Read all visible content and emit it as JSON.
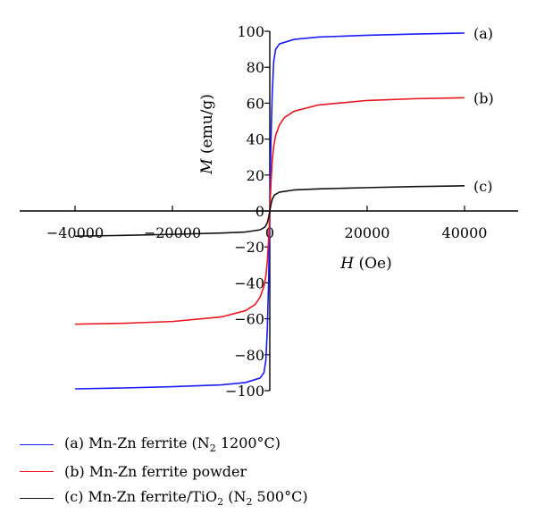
{
  "chart_data": {
    "type": "line",
    "xlabel": {
      "italic": "H",
      "rest": " (Oe)"
    },
    "ylabel": {
      "italic": "M",
      "rest": " (emu/g)"
    },
    "xlim": [
      -50000,
      50000
    ],
    "ylim": [
      -100,
      100
    ],
    "xticks": [
      -40000,
      -20000,
      0,
      20000,
      40000
    ],
    "yticks": [
      -100,
      -80,
      -60,
      -40,
      -20,
      0,
      20,
      40,
      60,
      80,
      100
    ],
    "grid": false,
    "legend_position": "bottom-left",
    "series": [
      {
        "id": "a",
        "curve_label": "(a)",
        "legend": {
          "pre": "(a) Mn-Zn ferrite (N",
          "sub": "2",
          "post": " 1200°C)"
        },
        "color": "#1a1aff",
        "x": [
          -40000,
          -30000,
          -20000,
          -10000,
          -5000,
          -2000,
          -1200,
          -800,
          -500,
          -250,
          -100,
          0,
          100,
          250,
          500,
          800,
          1200,
          2000,
          5000,
          10000,
          20000,
          30000,
          40000
        ],
        "y": [
          -99,
          -98.5,
          -97.8,
          -96.8,
          -95.5,
          -93,
          -90,
          -83,
          -65,
          -40,
          -18,
          0,
          18,
          40,
          65,
          83,
          90,
          93,
          95.5,
          96.8,
          97.8,
          98.5,
          99
        ]
      },
      {
        "id": "b",
        "curve_label": "(b)",
        "legend": {
          "pre": "(b) Mn-Zn ferrite powder",
          "sub": "",
          "post": ""
        },
        "color": "#e8141e",
        "x": [
          -40000,
          -30000,
          -20000,
          -10000,
          -5000,
          -3000,
          -2000,
          -1200,
          -800,
          -500,
          -250,
          -100,
          0,
          100,
          250,
          500,
          800,
          1200,
          2000,
          3000,
          5000,
          10000,
          20000,
          30000,
          40000
        ],
        "y": [
          -63,
          -62.5,
          -61.5,
          -59,
          -55.5,
          -52,
          -48,
          -42,
          -36,
          -28,
          -16,
          -7,
          0,
          7,
          16,
          28,
          36,
          42,
          48,
          52,
          55.5,
          59,
          61.5,
          62.5,
          63
        ]
      },
      {
        "id": "c",
        "curve_label": "(c)",
        "legend": {
          "pre": "(c) Mn-Zn ferrite/TiO",
          "sub": "2",
          "post": " (N",
          "sub2": "2",
          "post2": " 500°C)"
        },
        "color": "#111111",
        "x": [
          -40000,
          -30000,
          -20000,
          -10000,
          -5000,
          -2000,
          -1000,
          -500,
          -200,
          0,
          200,
          500,
          1000,
          2000,
          5000,
          10000,
          20000,
          30000,
          40000
        ],
        "y": [
          -14,
          -13.6,
          -13,
          -12.3,
          -11.7,
          -10.5,
          -9,
          -6.5,
          -3,
          0,
          3,
          6.5,
          9,
          10.5,
          11.7,
          12.3,
          13,
          13.6,
          14
        ]
      }
    ]
  }
}
